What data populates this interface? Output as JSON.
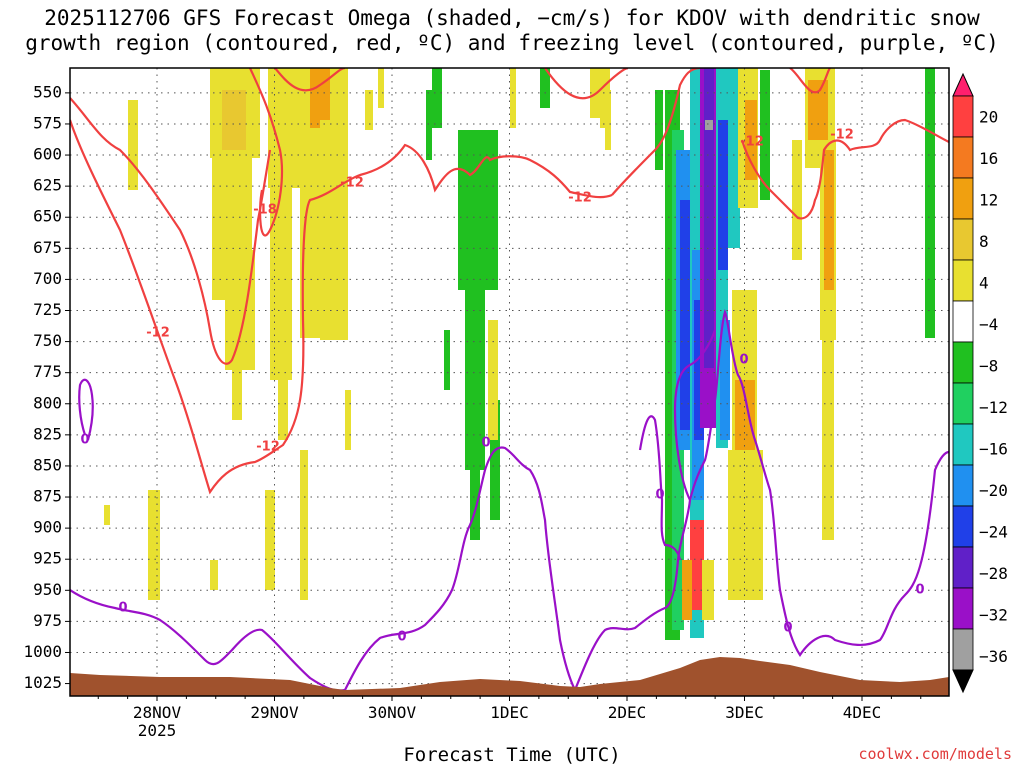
{
  "title_line1": "2025112706 GFS Forecast Omega (shaded, −cm/s) for KDOV with dendritic snow",
  "title_line2": "growth region (contoured, red, ºC) and freezing level (contoured, purple, ºC)",
  "credit": "coolwx.com/models",
  "colors": {
    "dgz_contour": "#f04040",
    "freezing_contour": "#9a10c8",
    "terrain": "#a0522d",
    "grid": "#555555"
  },
  "chart_data": {
    "type": "heatmap",
    "title": "2025112706 GFS Forecast Omega (shaded, −cm/s) for KDOV with dendritic snow growth region (contoured, red, ºC) and freezing level (contoured, purple, ºC)",
    "xlabel": "Forecast Time (UTC)",
    "ylabel": "",
    "x_ticks": [
      "28NOV\n2025",
      "29NOV",
      "30NOV",
      "1DEC",
      "2DEC",
      "3DEC",
      "4DEC"
    ],
    "x_range_days": [
      "27NOV 06Z",
      "4DEC 18Z"
    ],
    "y_axis": "pressure (hPa), reversed",
    "y_ticks": [
      550,
      575,
      600,
      625,
      650,
      675,
      700,
      725,
      750,
      775,
      800,
      825,
      850,
      875,
      900,
      925,
      950,
      975,
      1000,
      1025
    ],
    "ylim": [
      530,
      1035
    ],
    "grid": true,
    "colorbar": {
      "tick_labels": [
        "20",
        "16",
        "12",
        "8",
        "4",
        "−4",
        "−8",
        "−12",
        "−16",
        "−20",
        "−24",
        "−28",
        "−32",
        "−36"
      ],
      "colors": [
        "#ff1f6e",
        "#ff4040",
        "#f47a20",
        "#f0a010",
        "#e8c830",
        "#e8e030",
        "#ffffff",
        "#20c020",
        "#20d060",
        "#20c8c0",
        "#2090f0",
        "#2040e8",
        "#6020c8",
        "#9a10c8",
        "#a0a0a0",
        "#000000"
      ]
    },
    "contour_labels": {
      "dgz_red": [
        "-12",
        "-18",
        "-12",
        "-12",
        "-12",
        "-12",
        "-12"
      ],
      "freezing_purple": [
        "0",
        "0",
        "0",
        "0",
        "0",
        "0",
        "0",
        "0",
        "0"
      ]
    }
  }
}
